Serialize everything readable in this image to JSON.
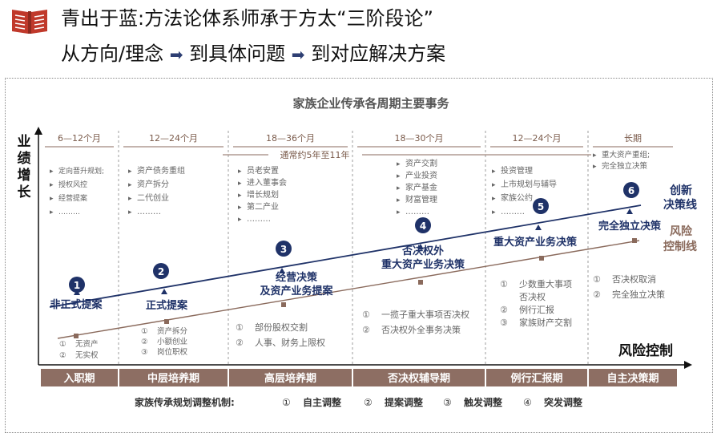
{
  "header": {
    "title_line1": "青出于蓝:方法论体系师承于方太“三阶段论”",
    "title_line2_parts": [
      "从方向/理念",
      "到具体问题",
      "到对应解决方案"
    ],
    "arrow_glyph": "➡",
    "icon": "red-book-icon",
    "accent_color": "#c0392b"
  },
  "diagram": {
    "title": "家族企业传承各周期主要事务",
    "y_axis_label": "业绩增长",
    "x_axis_label": "风险控制",
    "span_note": "通常约5年至11年",
    "periods": [
      {
        "duration": "6—12个月",
        "items": [
          "定向晋升规划;",
          "授权风控",
          "经营提案",
          "………"
        ],
        "stage": "入职期"
      },
      {
        "duration": "12—24个月",
        "items": [
          "资产债务重组",
          "资产拆分",
          "二代创业",
          "………"
        ],
        "stage": "中层培养期"
      },
      {
        "duration": "18—36个月",
        "items": [
          "员老安置",
          "进入董事会",
          "增长规划",
          "第二产业",
          "………"
        ],
        "stage": "高层培养期"
      },
      {
        "duration": "18—30个月",
        "items": [
          "资产交割",
          "产业投资",
          "家产基金",
          "财富管理",
          "………"
        ],
        "stage": "否决权辅导期"
      },
      {
        "duration": "12—24个月",
        "items": [
          "投资管理",
          "上市规划与辅导",
          "家族公约",
          "………"
        ],
        "stage": "例行汇报期"
      },
      {
        "duration": "长期",
        "items": [
          "重大资产重组;",
          "完全独立决策"
        ],
        "stage": "自主决策期"
      }
    ],
    "decision_milestones": [
      {
        "num": "1",
        "lines": [
          "非正式提案"
        ]
      },
      {
        "num": "2",
        "lines": [
          "正式提案"
        ]
      },
      {
        "num": "3",
        "lines": [
          "经营决策",
          "及资产业务提案"
        ]
      },
      {
        "num": "4",
        "lines": [
          "否决权外",
          "重大资产业务决策"
        ]
      },
      {
        "num": "5",
        "lines": [
          "重大资产业务决策"
        ]
      },
      {
        "num": "6",
        "lines": [
          "完全独立决策"
        ]
      }
    ],
    "innovation_line_label": [
      "创新",
      "决策线"
    ],
    "risk_line_label": [
      "风险",
      "控制线"
    ],
    "risk_items": [
      [
        [
          "①",
          "无资产"
        ],
        [
          "②",
          "无实权"
        ]
      ],
      [
        [
          "①",
          "资产拆分"
        ],
        [
          "②",
          "小额创业"
        ],
        [
          "③",
          "岗位职权"
        ]
      ],
      [
        [
          "①",
          "部份股权交割"
        ],
        [
          "②",
          "人事、财务上限权"
        ]
      ],
      [
        [
          "①",
          "一揽子重大事项否决权"
        ],
        [
          "②",
          "否决权外全事务决策"
        ]
      ],
      [
        [
          "①",
          "少数重大事项"
        ],
        [
          "",
          "否决权"
        ],
        [
          "②",
          "例行汇报"
        ],
        [
          "③",
          "家族财产交割"
        ]
      ],
      [
        [
          "①",
          "否决权取消"
        ],
        [
          "②",
          "完全独立决策"
        ]
      ]
    ],
    "mechanism_label": "家族传承规划调整机制:",
    "mechanisms": [
      {
        "num": "①",
        "label": "自主调整"
      },
      {
        "num": "②",
        "label": "提案调整"
      },
      {
        "num": "③",
        "label": "触发调整"
      },
      {
        "num": "④",
        "label": "突发调整"
      }
    ],
    "colors": {
      "navy": "#1f3268",
      "brown": "#8a6a5c",
      "stage_bar": "#8d6e63",
      "grey_text": "#666666",
      "period_text": "#7a5a4a"
    }
  }
}
